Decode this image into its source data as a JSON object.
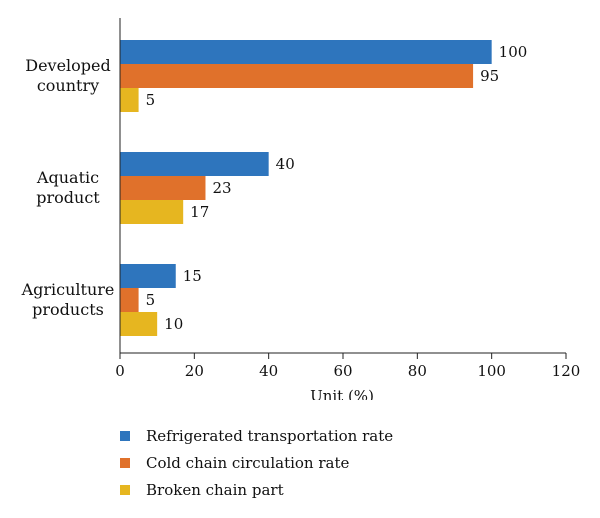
{
  "chart_data": {
    "type": "bar",
    "orientation": "horizontal",
    "categories": [
      "Developed country",
      "Aquatic product",
      "Agriculture products"
    ],
    "category_lines": [
      [
        "Developed",
        "country"
      ],
      [
        "Aquatic",
        "product"
      ],
      [
        "Agriculture",
        "products"
      ]
    ],
    "series": [
      {
        "name": "Refrigerated transportation rate",
        "values": [
          100,
          40,
          15
        ],
        "color": "#2e75bd"
      },
      {
        "name": "Cold chain circulation rate",
        "values": [
          95,
          23,
          5
        ],
        "color": "#e0712b"
      },
      {
        "name": "Broken chain part",
        "values": [
          5,
          17,
          10
        ],
        "color": "#e6b620"
      }
    ],
    "xlabel": "Unit (%)",
    "ylabel": "",
    "title": "",
    "xlim": [
      0,
      120
    ],
    "xticks": [
      0,
      20,
      40,
      60,
      80,
      100,
      120
    ],
    "grid": false,
    "data_labels": true,
    "legend_position": "bottom-left"
  }
}
